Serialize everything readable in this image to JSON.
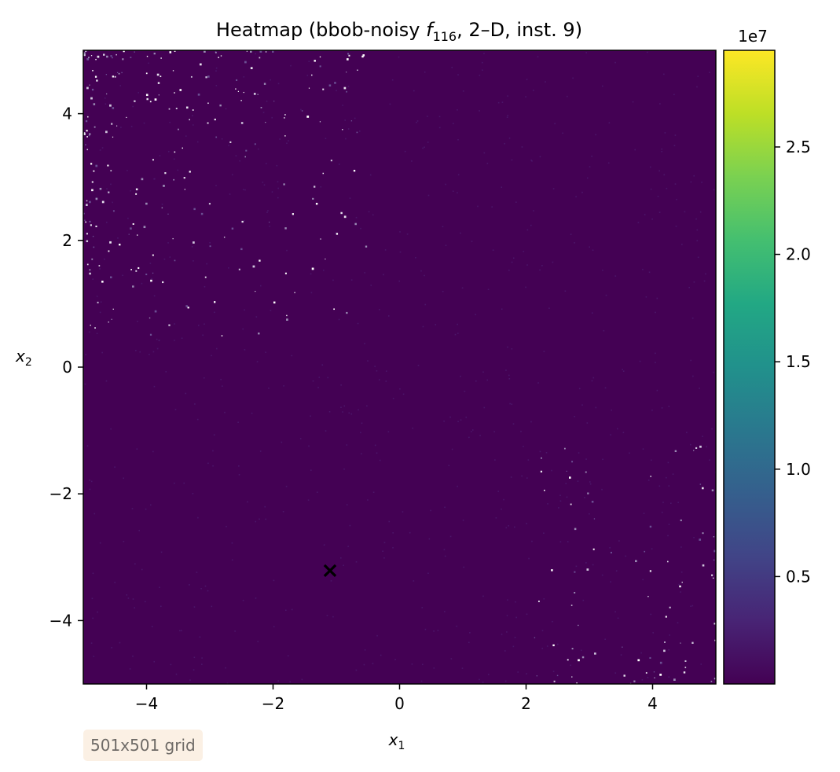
{
  "chart_data": {
    "type": "heatmap",
    "title": {
      "prefix": "Heatmap (bbob-noisy ",
      "func_italic": "f",
      "func_sub": "116",
      "suffix": ", 2–D, inst. 9)"
    },
    "xlabel": {
      "main": "x",
      "sub": "1"
    },
    "ylabel": {
      "main": "x",
      "sub": "2"
    },
    "xlim": [
      -5,
      5
    ],
    "ylim": [
      -5,
      5
    ],
    "xticks": [
      -4,
      -2,
      0,
      2,
      4
    ],
    "xtick_labels": [
      "−4",
      "−2",
      "0",
      "2",
      "4"
    ],
    "yticks": [
      -4,
      -2,
      0,
      2,
      4
    ],
    "ytick_labels": [
      "−4",
      "−2",
      "0",
      "2",
      "4"
    ],
    "grid": false,
    "colormap": "viridis",
    "background_color": "#440154",
    "colorbar": {
      "range": [
        0,
        29500000
      ],
      "ticks": [
        5000000,
        10000000,
        15000000,
        20000000,
        25000000
      ],
      "tick_labels": [
        "0.5",
        "1.0",
        "1.5",
        "2.0",
        "2.5"
      ],
      "offset_label": "1e7",
      "placement": "right"
    },
    "optimum_marker": {
      "x": -1.1,
      "y": -3.2,
      "symbol": "×",
      "color": "#ffffff"
    },
    "noise_regions": [
      {
        "region": "upper-left",
        "x_range": [
          -5,
          -0.5
        ],
        "y_range": [
          0.5,
          5
        ],
        "points": 260
      },
      {
        "region": "lower-right",
        "x_range": [
          2,
          5
        ],
        "y_range": [
          -5,
          -1
        ],
        "points": 90
      }
    ],
    "grid_note": "501x501 grid"
  }
}
